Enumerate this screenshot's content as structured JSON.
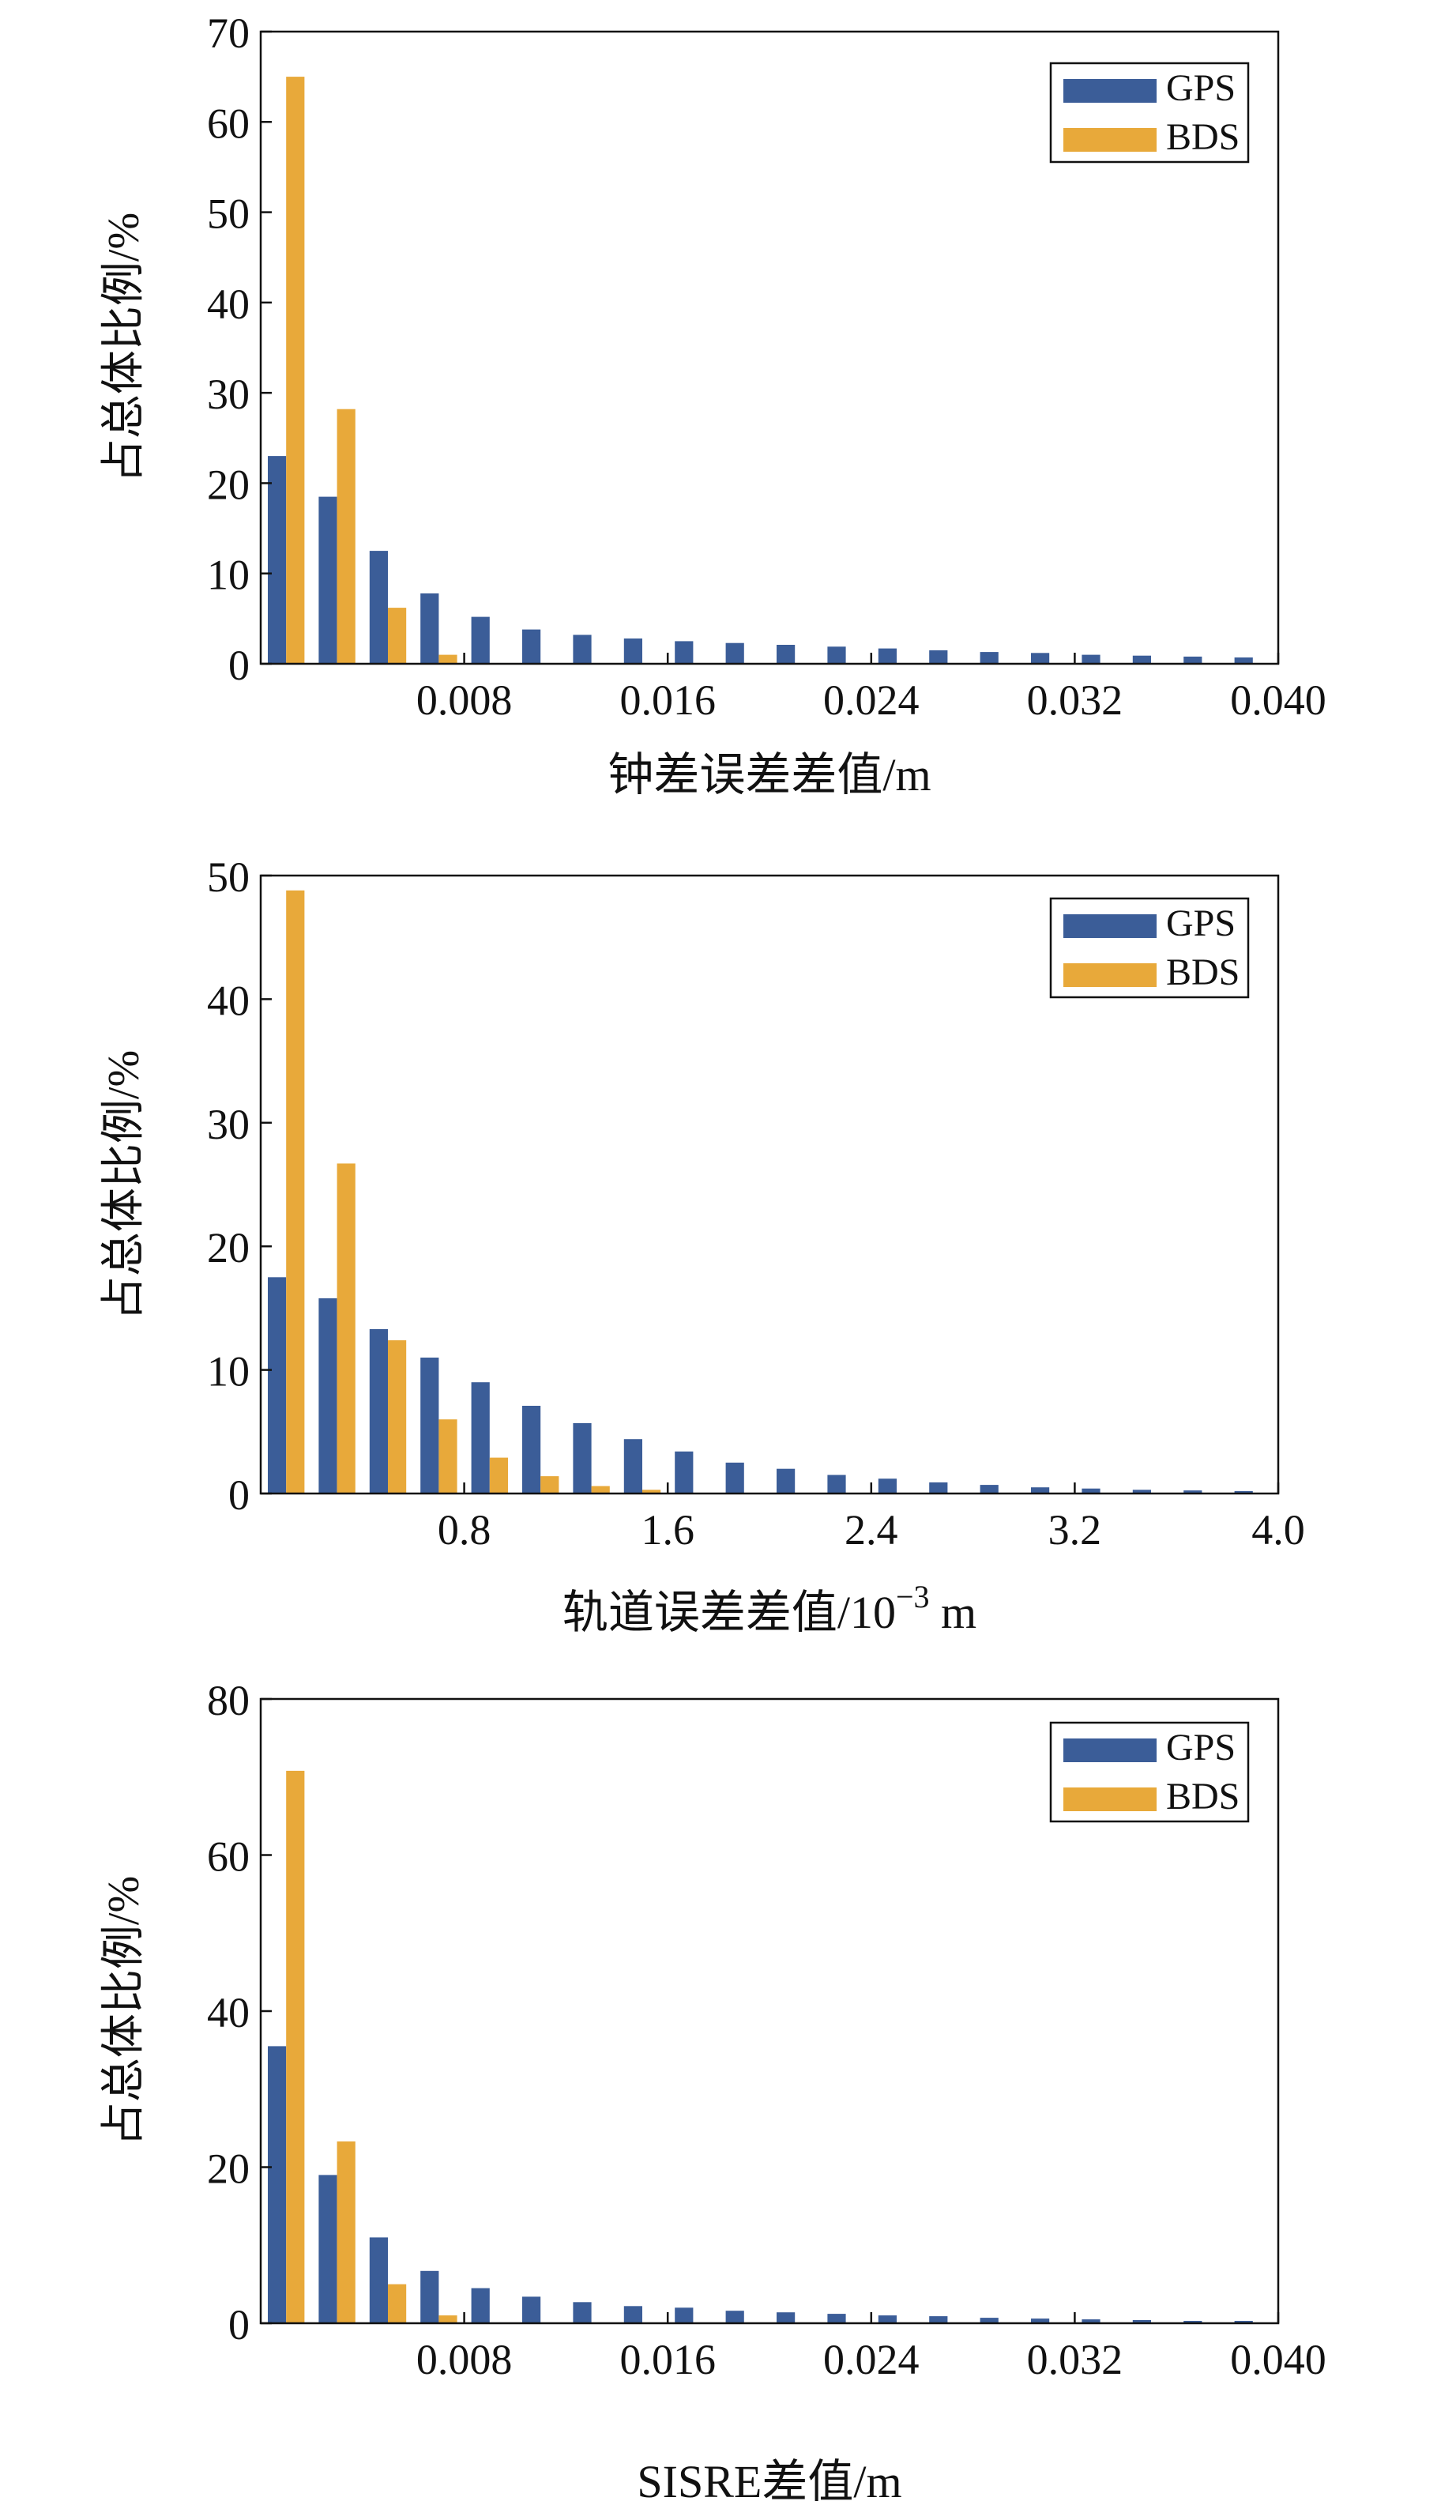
{
  "colors": {
    "gps": "#3b5d98",
    "bds": "#e8a93a",
    "axis": "#111111"
  },
  "legend": {
    "gps_label": "GPS",
    "bds_label": "BDS"
  },
  "chart_data": [
    {
      "type": "bar",
      "title": "",
      "ylabel": "占总体比例/%",
      "xlabel": "钟差误差差值/m",
      "ylim": [
        0,
        70
      ],
      "yticks": [
        0,
        10,
        20,
        30,
        40,
        50,
        60,
        70
      ],
      "xlim": [
        0,
        0.04
      ],
      "xticks": [
        0.008,
        0.016,
        0.024,
        0.032,
        0.04
      ],
      "xtick_labels": [
        "0.008",
        "0.016",
        "0.024",
        "0.032",
        "0.040"
      ],
      "bin_width": 0.002,
      "legend_position": "top-right",
      "series": [
        {
          "name": "GPS",
          "values": [
            23,
            18.5,
            12.5,
            7.8,
            5.2,
            3.8,
            3.2,
            2.8,
            2.5,
            2.3,
            2.1,
            1.9,
            1.7,
            1.5,
            1.3,
            1.2,
            1.0,
            0.9,
            0.8,
            0.7
          ]
        },
        {
          "name": "BDS",
          "values": [
            65,
            28.2,
            6.2,
            1.0,
            0,
            0,
            0,
            0,
            0,
            0,
            0,
            0,
            0,
            0,
            0,
            0,
            0,
            0,
            0,
            0
          ]
        }
      ]
    },
    {
      "type": "bar",
      "title": "",
      "ylabel": "占总体比例/%",
      "xlabel": "轨道误差差值/10",
      "xlabel_superscript": "−3",
      "xlabel_unit": "m",
      "ylim": [
        0,
        50
      ],
      "yticks": [
        0,
        10,
        20,
        30,
        40,
        50
      ],
      "xlim": [
        0,
        4.0
      ],
      "xticks": [
        0.8,
        1.6,
        2.4,
        3.2,
        4.0
      ],
      "xtick_labels": [
        "0.8",
        "1.6",
        "2.4",
        "3.2",
        "4.0"
      ],
      "bin_width": 0.2,
      "legend_position": "top-right",
      "series": [
        {
          "name": "GPS",
          "values": [
            17.5,
            15.8,
            13.3,
            11.0,
            9.0,
            7.1,
            5.7,
            4.4,
            3.4,
            2.5,
            2.0,
            1.5,
            1.2,
            0.9,
            0.7,
            0.5,
            0.4,
            0.3,
            0.25,
            0.2
          ]
        },
        {
          "name": "BDS",
          "values": [
            48.8,
            26.7,
            12.4,
            6.0,
            2.9,
            1.4,
            0.6,
            0.3,
            0,
            0,
            0,
            0,
            0,
            0,
            0,
            0,
            0,
            0,
            0,
            0
          ]
        }
      ]
    },
    {
      "type": "bar",
      "title": "",
      "ylabel": "占总体比例/%",
      "xlabel": "SISRE差值/m",
      "ylim": [
        0,
        80
      ],
      "yticks": [
        0,
        20,
        40,
        60,
        80
      ],
      "xlim": [
        0,
        0.04
      ],
      "xticks": [
        0.008,
        0.016,
        0.024,
        0.032,
        0.04
      ],
      "xtick_labels": [
        "0.008",
        "0.016",
        "0.024",
        "0.032",
        "0.040"
      ],
      "bin_width": 0.002,
      "legend_position": "top-right",
      "series": [
        {
          "name": "GPS",
          "values": [
            35.5,
            19.0,
            11.0,
            6.7,
            4.5,
            3.4,
            2.7,
            2.2,
            2.0,
            1.6,
            1.4,
            1.2,
            1.0,
            0.9,
            0.7,
            0.6,
            0.5,
            0.4,
            0.3,
            0.3
          ]
        },
        {
          "name": "BDS",
          "values": [
            70.8,
            23.3,
            5.0,
            1.0,
            0,
            0,
            0,
            0,
            0,
            0,
            0,
            0,
            0,
            0,
            0,
            0,
            0,
            0,
            0,
            0
          ]
        }
      ]
    }
  ]
}
